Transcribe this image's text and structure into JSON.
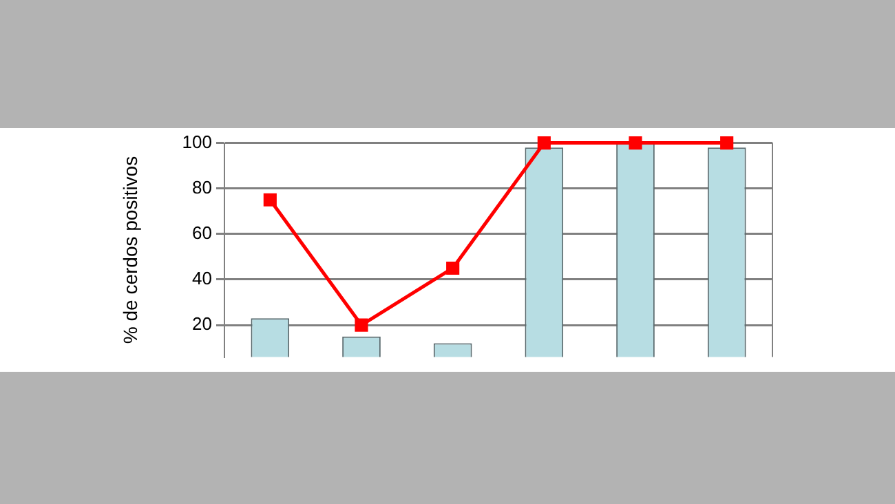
{
  "chart_data": {
    "type": "bar",
    "ylabel": "% de cerdos positivos",
    "categories": [
      null,
      null,
      null,
      null,
      null,
      null
    ],
    "series": [
      {
        "color": "#b7dde3",
        "values": [
          23,
          15,
          12,
          98,
          100,
          98
        ]
      },
      {
        "type": "line",
        "color": "#ff0000",
        "values": [
          75,
          20,
          45,
          100,
          100,
          100
        ]
      }
    ],
    "ylim": [
      6,
      100
    ],
    "yticks": [
      20,
      40,
      60,
      80,
      100
    ],
    "grid": "y",
    "marker": "square",
    "tick_labels": "y"
  }
}
